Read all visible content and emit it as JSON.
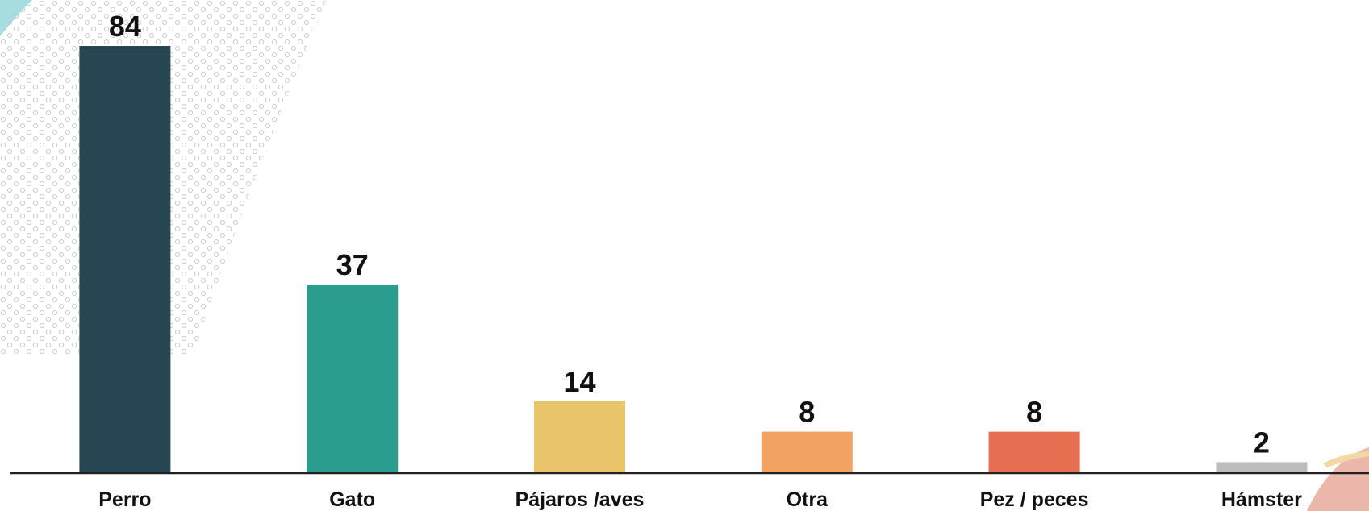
{
  "chart_data": {
    "type": "bar",
    "categories": [
      "Perro",
      "Gato",
      "Pájaros /aves",
      "Otra",
      "Pez / peces",
      "Hámster"
    ],
    "values": [
      84,
      37,
      14,
      8,
      8,
      2
    ],
    "colors": [
      "#264653",
      "#2a9d8f",
      "#e9c46a",
      "#f4a261",
      "#e76f51",
      "#bdbdbd"
    ]
  }
}
